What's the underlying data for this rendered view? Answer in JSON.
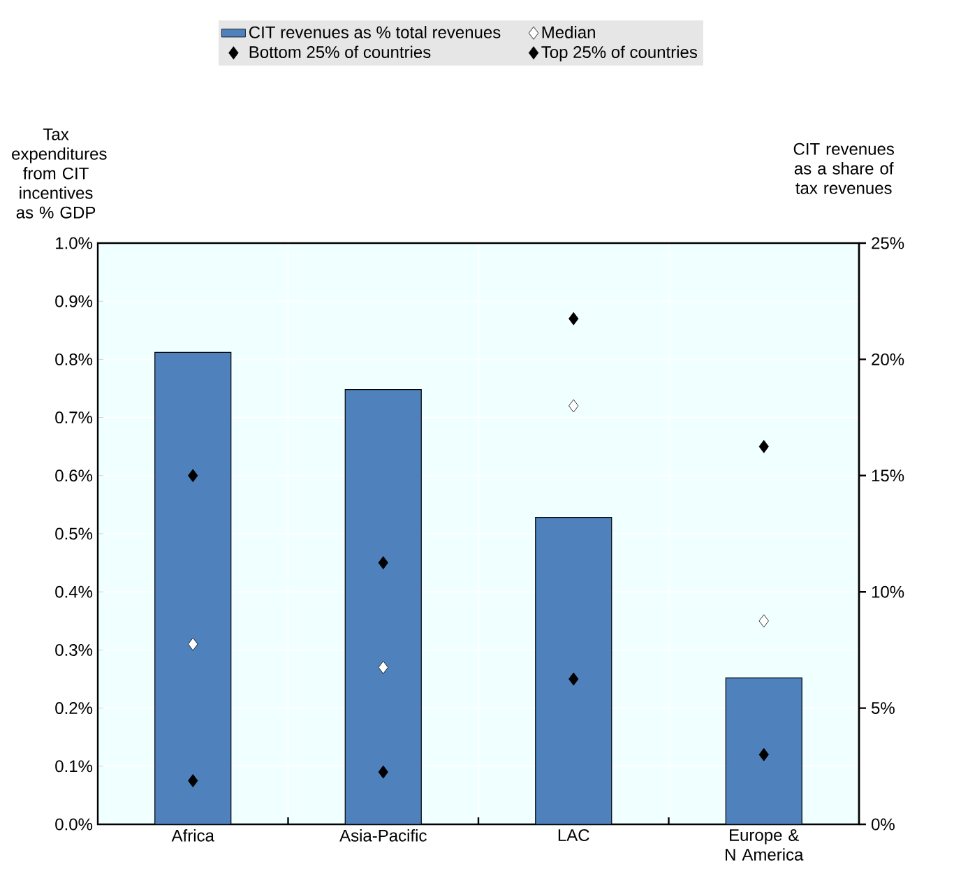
{
  "chart_data": {
    "type": "bar",
    "categories": [
      "Africa",
      "Asia-Pacific",
      "LAC",
      "Europe & N America"
    ],
    "ylabel": "Tax expenditures from CIT incentives as % GDP",
    "y2label": "CIT revenues as a share of tax revenues",
    "ylim": [
      0,
      1.0
    ],
    "yticks": [
      {
        "value": 0,
        "label": "0.0%"
      },
      {
        "value": 0.1,
        "label": "0.1%"
      },
      {
        "value": 0.2,
        "label": "0.2%"
      },
      {
        "value": 0.3,
        "label": "0.3%"
      },
      {
        "value": 0.4,
        "label": "0.4%"
      },
      {
        "value": 0.5,
        "label": "0.5%"
      },
      {
        "value": 0.6,
        "label": "0.6%"
      },
      {
        "value": 0.7,
        "label": "0.7%"
      },
      {
        "value": 0.8,
        "label": "0.8%"
      },
      {
        "value": 0.9,
        "label": "0.9%"
      },
      {
        "value": 1.0,
        "label": "1.0%"
      }
    ],
    "y2lim": [
      0,
      25
    ],
    "y2ticks": [
      {
        "value": 0,
        "label": "0%"
      },
      {
        "value": 5,
        "label": "5%"
      },
      {
        "value": 10,
        "label": "10%"
      },
      {
        "value": 15,
        "label": "15%"
      },
      {
        "value": 20,
        "label": "20%"
      },
      {
        "value": 25,
        "label": "25%"
      }
    ],
    "grid": true,
    "legend": "top",
    "series": [
      {
        "name": "CIT revenues as % total revenues",
        "axis": "y2",
        "color": "#4f81bd",
        "values": [
          20.3,
          18.7,
          13.2,
          6.3
        ]
      },
      {
        "name": "Median",
        "type": "scatter",
        "marker": "diamond",
        "color": "#ffffff",
        "x": [
          "Africa",
          "Asia-Pacific",
          "LAC",
          "Europe & N America"
        ],
        "values": [
          0.31,
          0.27,
          0.72,
          0.35
        ]
      },
      {
        "name": "Bottom 25% of countries",
        "type": "scatter",
        "marker": "diamond",
        "color": "#000000",
        "x": [
          "Africa",
          "Asia-Pacific",
          "LAC",
          "Europe & N America"
        ],
        "values": [
          0.075,
          0.09,
          0.25,
          0.12
        ]
      },
      {
        "name": "Top 25% of countries",
        "type": "scatter",
        "marker": "diamond",
        "color": "#000000",
        "x": [
          "Africa",
          "Asia-Pacific",
          "LAC",
          "Europe & N America"
        ],
        "values": [
          0.6,
          0.45,
          0.87,
          0.65
        ]
      }
    ]
  }
}
